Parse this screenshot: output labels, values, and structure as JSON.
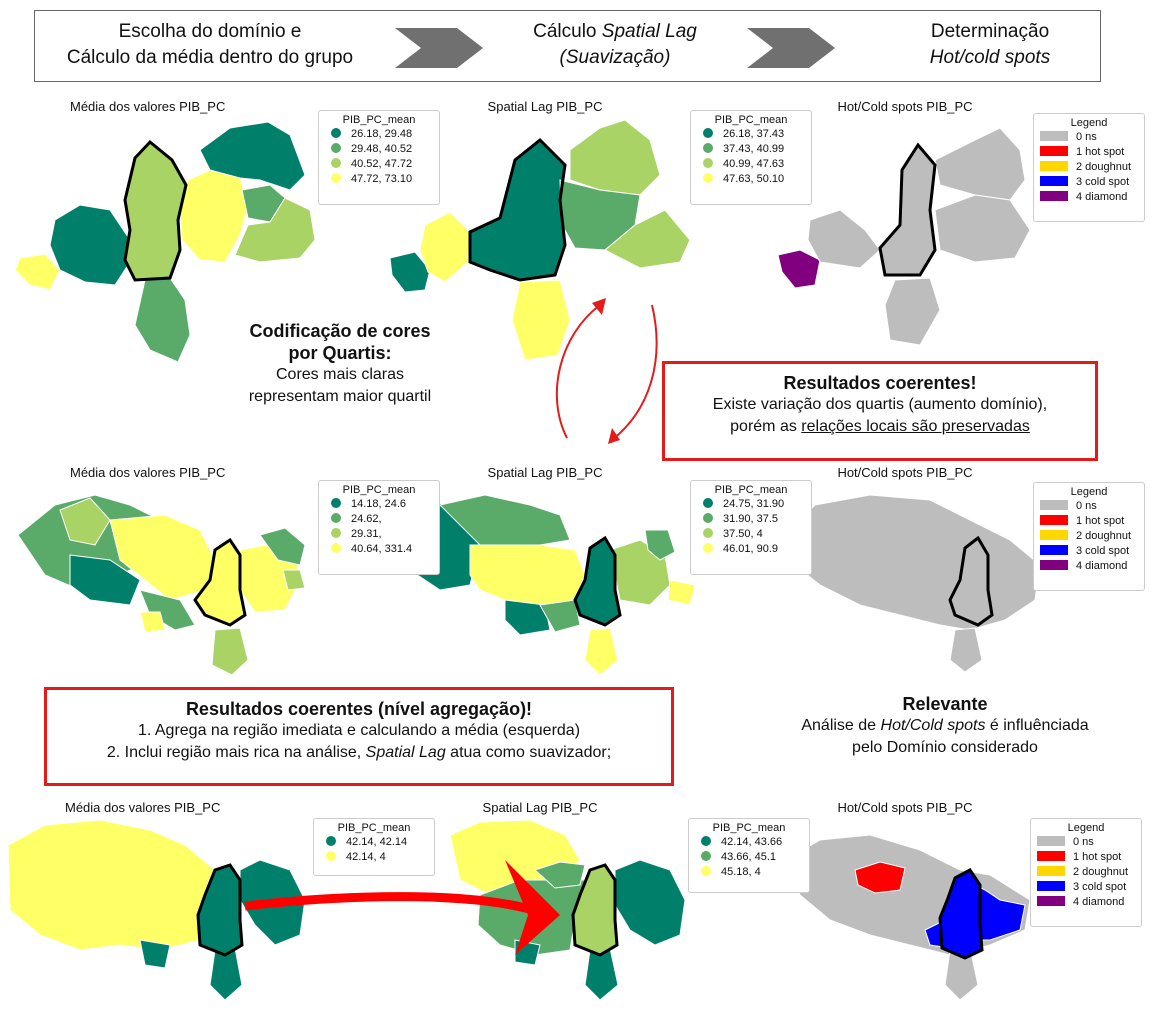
{
  "flow": {
    "step1": {
      "line1": "Escolha do domínio e",
      "line2": "Cálculo da média dentro do grupo"
    },
    "step2": {
      "line1_a": "Cálculo ",
      "line1_b": "Spatial Lag",
      "line2": "(Suavização)"
    },
    "step3": {
      "line1": "Determinação",
      "line2": "Hot/cold spots"
    }
  },
  "colors": {
    "q1": "#00806a",
    "q2": "#5aab69",
    "q3": "#a9d465",
    "q4": "#ffff66",
    "gray": "#bdbdbd",
    "hot": "#ff0000",
    "doughnut": "#ffd700",
    "cold": "#0000ff",
    "diamond": "#800080",
    "annotation_red": "#e31b1b"
  },
  "rows": [
    {
      "mean": {
        "title": "Média dos valores PIB_PC",
        "legend_title": "PIB_PC_mean",
        "items": [
          "26.18, 29.48",
          "29.48, 40.52",
          "40.52, 47.72",
          "47.72, 73.10"
        ]
      },
      "lag": {
        "title": "Spatial Lag PIB_PC",
        "legend_title": "PIB_PC_mean",
        "items": [
          "26.18, 37.43",
          "37.43, 40.99",
          "40.99, 47.63",
          "47.63, 50.10"
        ]
      },
      "hot": {
        "title": "Hot/Cold spots PIB_PC",
        "legend_title": "Legend",
        "items": [
          "0 ns",
          "1 hot spot",
          "2 doughnut",
          "3 cold spot",
          "4 diamond"
        ]
      }
    },
    {
      "mean": {
        "title": "Média dos valores PIB_PC",
        "legend_title": "PIB_PC_mean",
        "items": [
          "14.18,  24.6",
          "24.62,",
          "29.31,",
          "40.64, 331.4"
        ]
      },
      "lag": {
        "title": "Spatial Lag PIB_PC",
        "legend_title": "PIB_PC_mean",
        "items": [
          "24.75, 31.90",
          "31.90, 37.5",
          "37.50, 4",
          "46.01, 90.9"
        ]
      },
      "hot": {
        "title": "Hot/Cold spots PIB_PC",
        "legend_title": "Legend",
        "items": [
          "0 ns",
          "1 hot spot",
          "2 doughnut",
          "3 cold spot",
          "4 diamond"
        ]
      }
    },
    {
      "mean": {
        "title": "Média dos valores PIB_PC",
        "legend_title": "PIB_PC_mean",
        "items": [
          "42.14, 42.14",
          "42.14, 4"
        ]
      },
      "lag": {
        "title": "Spatial Lag PIB_PC",
        "legend_title": "PIB_PC_mean",
        "items": [
          "42.14, 43.66",
          "43.66, 45.1",
          "45.18, 4"
        ]
      },
      "hot": {
        "title": "Hot/Cold spots PIB_PC",
        "legend_title": "Legend",
        "items": [
          "0 ns",
          "1 hot spot",
          "2 doughnut",
          "3 cold spot",
          "4 diamond"
        ]
      }
    }
  ],
  "note_quartis": {
    "bold1": "Codificação de cores",
    "bold2": "por Quartis:",
    "line3": "Cores mais claras",
    "line4": "representam maior quartil"
  },
  "box1": {
    "bold": "Resultados coerentes!",
    "line2": "Existe variação dos quartis (aumento domínio),",
    "line3_a": "porém as ",
    "line3_b": "relações locais são preservadas"
  },
  "box2": {
    "bold": "Resultados coerentes (nível agregação)!",
    "line2": "1. Agrega na região imediata e calculando a média (esquerda)",
    "line3_a": "2. Inclui região mais rica na análise, ",
    "line3_b": "Spatial Lag",
    "line3_c": " atua como suavizador;"
  },
  "note_relevante": {
    "bold": "Relevante",
    "line2_a": "Análise de ",
    "line2_b": "Hot/Cold spots",
    "line2_c": " é influênciada",
    "line3": "pelo Domínio considerado"
  }
}
